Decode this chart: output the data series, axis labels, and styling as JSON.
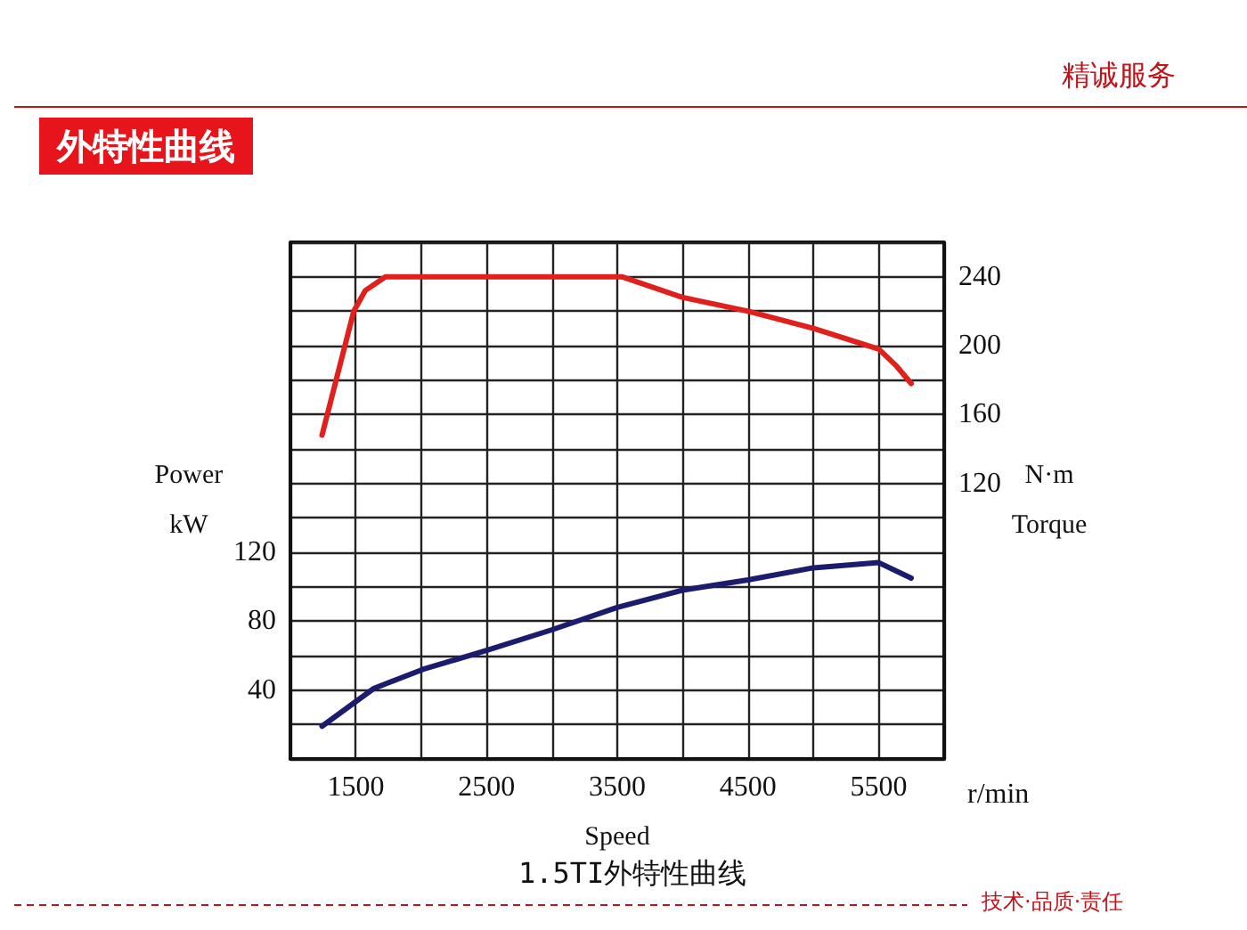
{
  "chart_data": {
    "type": "line",
    "title": "外特性曲线",
    "xlabel": "Speed",
    "ylabel": "Power\nkW",
    "y2label": "N·m\nTorque",
    "annotations": [
      "r/min",
      "1.5TI外特性曲线",
      "精诚服务",
      "技术·品质·责任"
    ],
    "xlim": [
      1000,
      6000
    ],
    "xticks": [
      {
        "value": 1000,
        "label": null
      },
      1500,
      {
        "value": 2000,
        "label": null
      },
      2500,
      {
        "value": 3000,
        "label": null
      },
      3500,
      {
        "value": 4000,
        "label": null
      },
      4500,
      {
        "value": 5000,
        "label": null
      },
      5500,
      {
        "value": 6000,
        "label": null
      }
    ],
    "ylim": [
      0,
      300
    ],
    "yticks": [
      {
        "value": 0,
        "label": null
      },
      {
        "value": 20,
        "label": null
      },
      40,
      {
        "value": 60,
        "label": null
      },
      80,
      {
        "value": 100,
        "label": null
      },
      120,
      {
        "value": 140,
        "label": null
      },
      {
        "value": 160,
        "label": null
      },
      {
        "value": 180,
        "label": null
      },
      {
        "value": 200,
        "label": null
      },
      {
        "value": 220,
        "label": null
      },
      {
        "value": 240,
        "label": null
      },
      {
        "value": 260,
        "label": null
      },
      {
        "value": 280,
        "label": null
      },
      {
        "value": 300,
        "label": null
      }
    ],
    "y2lim": [
      -40,
      260
    ],
    "y2ticks": [
      120,
      160,
      200,
      240
    ],
    "grid": true,
    "marker": "none",
    "line_style": "solid",
    "series": [
      {
        "color": "#e0201c",
        "axis": "y2",
        "x": [
          1242,
          1485,
          1573,
          1727,
          3535,
          4000,
          4500,
          5000,
          5500,
          5637,
          5748
        ],
        "values": [
          148,
          220,
          232,
          240,
          240,
          228,
          220,
          210,
          198,
          188,
          178
        ]
      },
      {
        "color": "#1c1c6e",
        "x": [
          1242,
          1639,
          2013,
          2500,
          3000,
          3500,
          4000,
          4500,
          5000,
          5500,
          5748
        ],
        "values": [
          19,
          41,
          52,
          63,
          75,
          88,
          98,
          104,
          111,
          114,
          105
        ]
      }
    ]
  }
}
